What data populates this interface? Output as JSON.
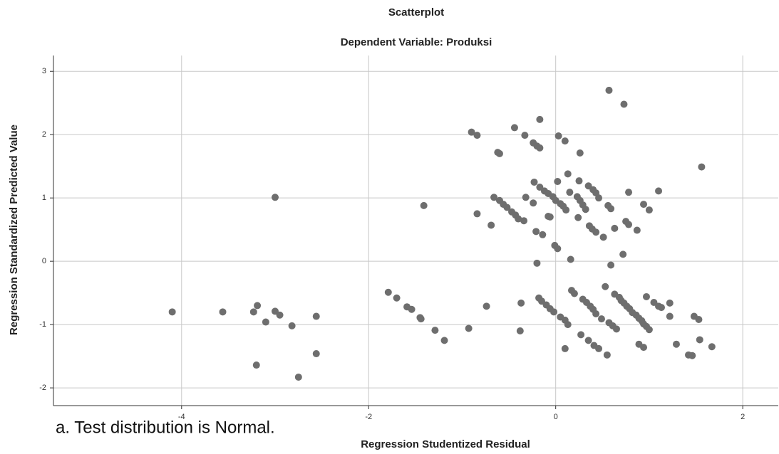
{
  "chart_data": {
    "type": "scatter",
    "title": "Scatterplot",
    "subtitle": "Dependent Variable: Produksi",
    "x_label": "Regression Studentized Residual",
    "y_label": "Regression Standardized Predicted Value",
    "annotation": "a. Test distribution is Normal.",
    "xlim": [
      -5.37,
      2.38
    ],
    "xticks": [
      -4,
      -2,
      0,
      2
    ],
    "ylim": [
      -2.28,
      3.25
    ],
    "yticks": [
      -2,
      -1,
      0,
      1,
      2,
      3
    ],
    "grid": true,
    "color": "#6e6e6e",
    "x": [
      -4.1,
      -3.56,
      -3.23,
      -3.19,
      -3.1,
      -3.0,
      -3.0,
      -2.95,
      -2.82,
      -3.2,
      -2.75,
      -2.56,
      -2.56,
      -1.79,
      -1.7,
      -1.59,
      -1.54,
      -1.45,
      -1.44,
      -1.41,
      -1.29,
      -1.19,
      -0.93,
      -0.9,
      -0.84,
      -0.84,
      -0.74,
      -0.69,
      -0.66,
      -0.62,
      -0.6,
      -0.6,
      -0.56,
      -0.52,
      -0.47,
      -0.43,
      -0.4,
      -0.37,
      -0.38,
      -0.34,
      -0.32,
      -0.33,
      -0.44,
      -0.24,
      -0.2,
      -0.17,
      -0.17,
      -0.24,
      -0.23,
      -0.21,
      -0.2,
      -0.18,
      -0.15,
      -0.14,
      -0.17,
      -0.12,
      -0.08,
      -0.08,
      -0.06,
      -0.1,
      -0.06,
      -0.02,
      -0.01,
      -0.03,
      0.02,
      0.02,
      0.0,
      0.05,
      0.08,
      0.11,
      0.03,
      0.1,
      0.05,
      0.1,
      0.13,
      0.1,
      0.13,
      0.15,
      0.16,
      0.17,
      0.2,
      0.23,
      0.26,
      0.29,
      0.32,
      0.24,
      0.25,
      0.26,
      0.27,
      0.29,
      0.33,
      0.37,
      0.4,
      0.43,
      0.35,
      0.35,
      0.4,
      0.43,
      0.36,
      0.39,
      0.43,
      0.41,
      0.46,
      0.49,
      0.46,
      0.51,
      0.53,
      0.55,
      0.56,
      0.57,
      0.59,
      0.57,
      0.59,
      0.61,
      0.63,
      0.63,
      0.65,
      0.68,
      0.7,
      0.73,
      0.73,
      0.72,
      0.75,
      0.78,
      0.76,
      0.78,
      0.79,
      0.82,
      0.86,
      0.89,
      0.92,
      0.94,
      0.97,
      1.0,
      0.87,
      0.89,
      0.94,
      0.94,
      1.0,
      0.97,
      1.05,
      1.1,
      1.13,
      1.1,
      1.22,
      1.22,
      1.29,
      1.42,
      1.46,
      1.48,
      1.53,
      1.54,
      1.56,
      1.67
    ],
    "values": [
      -0.8,
      -0.8,
      -0.8,
      -0.7,
      -0.96,
      1.01,
      -0.79,
      -0.85,
      -1.02,
      -1.64,
      -1.83,
      -0.87,
      -1.46,
      -0.49,
      -0.58,
      -0.72,
      -0.76,
      -0.89,
      -0.91,
      0.88,
      -1.09,
      -1.25,
      -1.06,
      2.04,
      1.99,
      0.75,
      -0.71,
      0.57,
      1.01,
      1.72,
      1.7,
      0.96,
      0.9,
      0.85,
      0.78,
      0.73,
      0.67,
      -0.66,
      -1.1,
      0.64,
      1.01,
      1.99,
      2.11,
      1.87,
      1.82,
      1.79,
      2.24,
      0.92,
      1.25,
      0.47,
      -0.03,
      -0.58,
      -0.63,
      0.42,
      1.17,
      1.11,
      1.07,
      0.71,
      0.7,
      -0.69,
      -0.75,
      -0.8,
      0.25,
      1.02,
      0.2,
      1.26,
      0.96,
      0.91,
      0.87,
      0.81,
      1.98,
      1.9,
      -0.88,
      -0.93,
      -1.0,
      -1.38,
      1.38,
      1.09,
      0.03,
      -0.46,
      -0.51,
      1.02,
      0.96,
      0.89,
      0.82,
      0.69,
      1.27,
      1.71,
      -1.16,
      -0.6,
      -0.65,
      -0.71,
      -0.76,
      -0.83,
      1.19,
      -1.25,
      1.13,
      1.08,
      0.56,
      0.51,
      0.46,
      -1.33,
      1.0,
      -0.91,
      -1.38,
      0.38,
      -0.4,
      -1.48,
      0.88,
      -0.97,
      -0.06,
      2.7,
      0.83,
      -1.02,
      0.52,
      -0.52,
      -1.07,
      -0.57,
      -0.62,
      -0.66,
      2.48,
      0.11,
      0.63,
      1.09,
      -0.71,
      0.58,
      -0.75,
      -0.81,
      -0.85,
      -0.9,
      -0.94,
      -0.99,
      -1.03,
      -1.08,
      0.49,
      -1.31,
      -1.36,
      0.9,
      0.81,
      -0.56,
      -0.65,
      -0.71,
      -0.73,
      1.11,
      -0.66,
      -0.87,
      -1.31,
      -1.48,
      -1.49,
      -0.87,
      -0.92,
      -1.24,
      1.49,
      -1.35
    ]
  }
}
